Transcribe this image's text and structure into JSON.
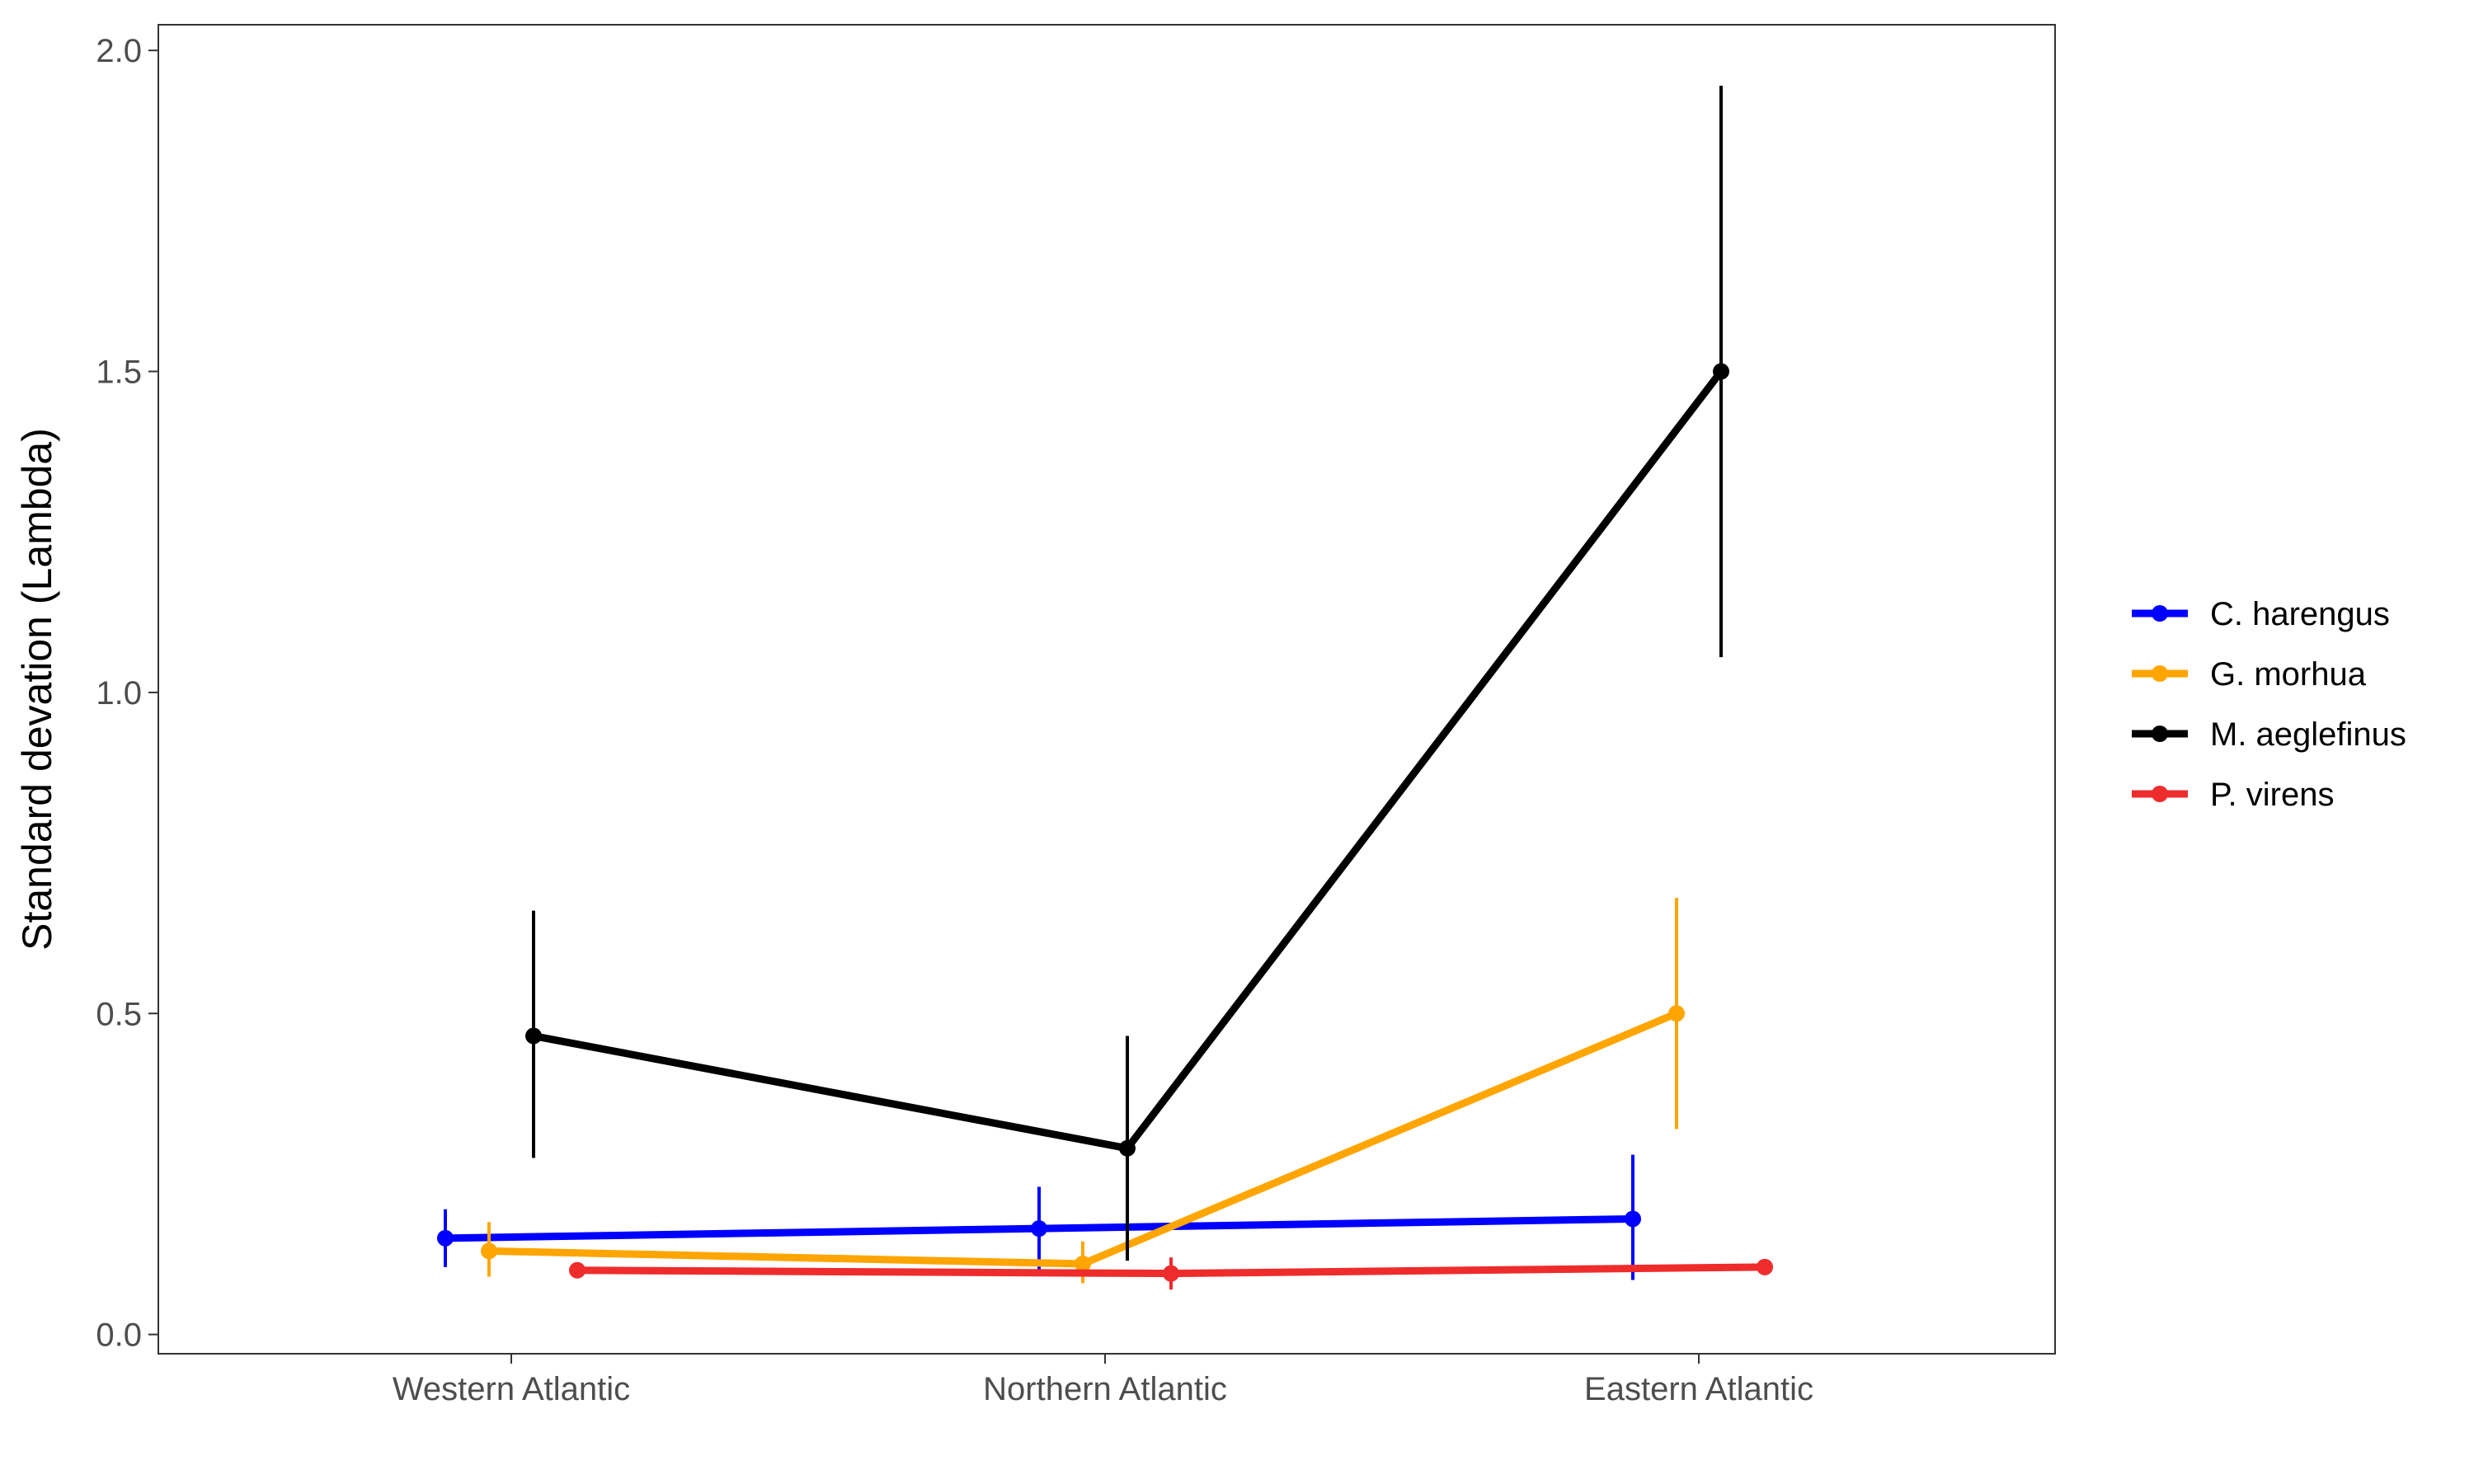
{
  "chart_data": {
    "type": "line",
    "title": "",
    "xlabel": "",
    "ylabel": "Standard devation (Lambda)",
    "categories": [
      "Western Atlantic",
      "Northern Atlantic",
      "Eastern Atlantic"
    ],
    "ylim": [
      -0.03,
      2.04
    ],
    "yticks": [
      0.0,
      0.5,
      1.0,
      1.5,
      2.0
    ],
    "ytick_labels": [
      "0.0",
      "0.5",
      "1.0",
      "1.5",
      "2.0"
    ],
    "grid": false,
    "legend_position": "right",
    "series": [
      {
        "name": "C. harengus",
        "color": "#0000ff",
        "values": [
          0.15,
          0.165,
          0.18
        ],
        "lower": [
          0.105,
          0.1,
          0.085
        ],
        "upper": [
          0.195,
          0.23,
          0.28
        ]
      },
      {
        "name": "G. morhua",
        "color": "#ffa500",
        "values": [
          0.13,
          0.11,
          0.5
        ],
        "lower": [
          0.09,
          0.08,
          0.32
        ],
        "upper": [
          0.175,
          0.145,
          0.68
        ]
      },
      {
        "name": "M. aeglefinus",
        "color": "#000000",
        "values": [
          0.465,
          0.29,
          1.5
        ],
        "lower": [
          0.275,
          0.115,
          1.055
        ],
        "upper": [
          0.66,
          0.465,
          1.945
        ]
      },
      {
        "name": "P. virens",
        "color": "#ee2c2c",
        "values": [
          0.1,
          0.095,
          0.105
        ],
        "lower": [
          0.1,
          0.07,
          0.105
        ],
        "upper": [
          0.1,
          0.12,
          0.105
        ]
      }
    ]
  }
}
